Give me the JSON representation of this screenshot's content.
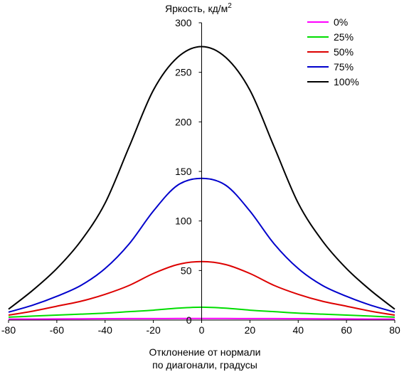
{
  "chart_data": {
    "type": "line",
    "ylabel": "Яркость, кд/м",
    "ylabel_sup": "2",
    "xlabel_line1": "Отклонение от нормали",
    "xlabel_line2": "по диагонали, градусы",
    "xlim": [
      -80,
      80
    ],
    "ylim": [
      0,
      300
    ],
    "xticks": [
      -80,
      -60,
      -40,
      -20,
      0,
      20,
      40,
      60,
      80
    ],
    "yticks": [
      0,
      50,
      100,
      150,
      200,
      250,
      300
    ],
    "grid": false,
    "legend_position": "top-right",
    "series": [
      {
        "name": "0%",
        "color": "#ff00ff",
        "x": [
          -80,
          -70,
          -60,
          -50,
          -40,
          -30,
          -20,
          -10,
          0,
          10,
          20,
          30,
          40,
          50,
          60,
          70,
          80
        ],
        "y": [
          1,
          1,
          1.2,
          1.3,
          1.4,
          1.5,
          1.5,
          1.6,
          1.6,
          1.6,
          1.5,
          1.5,
          1.4,
          1.3,
          1.2,
          1,
          1
        ]
      },
      {
        "name": "25%",
        "color": "#00dd00",
        "x": [
          -80,
          -70,
          -60,
          -50,
          -40,
          -30,
          -20,
          -10,
          0,
          10,
          20,
          30,
          40,
          50,
          60,
          70,
          80
        ],
        "y": [
          3,
          4,
          5,
          6,
          7,
          8.5,
          10,
          12,
          13,
          12,
          10,
          8.5,
          7,
          6,
          5,
          4,
          3
        ]
      },
      {
        "name": "50%",
        "color": "#dd0000",
        "x": [
          -80,
          -70,
          -60,
          -50,
          -40,
          -30,
          -20,
          -10,
          0,
          10,
          20,
          30,
          40,
          50,
          60,
          70,
          80
        ],
        "y": [
          5,
          9,
          14,
          19,
          26,
          35,
          47,
          56,
          59,
          56,
          47,
          35,
          26,
          19,
          14,
          9,
          5
        ]
      },
      {
        "name": "75%",
        "color": "#0000cc",
        "x": [
          -80,
          -70,
          -60,
          -50,
          -40,
          -30,
          -20,
          -10,
          0,
          10,
          20,
          30,
          40,
          50,
          60,
          70,
          80
        ],
        "y": [
          8,
          15,
          24,
          35,
          52,
          77,
          110,
          136,
          143,
          136,
          110,
          77,
          52,
          35,
          24,
          15,
          8
        ]
      },
      {
        "name": "100%",
        "color": "#000000",
        "x": [
          -80,
          -70,
          -60,
          -50,
          -40,
          -30,
          -20,
          -10,
          0,
          10,
          20,
          30,
          40,
          50,
          60,
          70,
          80
        ],
        "y": [
          11,
          30,
          52,
          80,
          118,
          175,
          232,
          265,
          276,
          265,
          232,
          175,
          118,
          80,
          52,
          30,
          11
        ]
      }
    ]
  }
}
